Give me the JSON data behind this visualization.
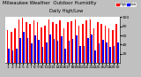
{
  "title": "Milwaukee Weather  Outdoor Humidity",
  "subtitle": "Daily High/Low",
  "high_values": [
    72,
    68,
    75,
    95,
    98,
    88,
    85,
    92,
    88,
    78,
    82,
    95,
    88,
    85,
    92,
    75,
    88,
    90,
    95,
    82,
    85,
    92,
    95,
    75,
    88,
    85,
    82,
    75,
    72,
    85
  ],
  "low_values": [
    32,
    28,
    32,
    55,
    68,
    55,
    42,
    60,
    50,
    35,
    45,
    62,
    52,
    48,
    58,
    32,
    48,
    52,
    60,
    38,
    38,
    55,
    62,
    28,
    42,
    50,
    45,
    35,
    38,
    45
  ],
  "bar_color_high": "#ff0000",
  "bar_color_low": "#0000ff",
  "background_color": "#c0c0c0",
  "plot_bg_color": "#ffffff",
  "ylim": [
    0,
    100
  ],
  "yticks": [
    20,
    40,
    60,
    80,
    100
  ],
  "legend_high": "High",
  "legend_low": "Low",
  "dotted_line_x": [
    21.5
  ],
  "n_bars": 30,
  "title_fontsize": 4.0,
  "tick_fontsize": 3.2,
  "ylabel_fontsize": 3.5
}
